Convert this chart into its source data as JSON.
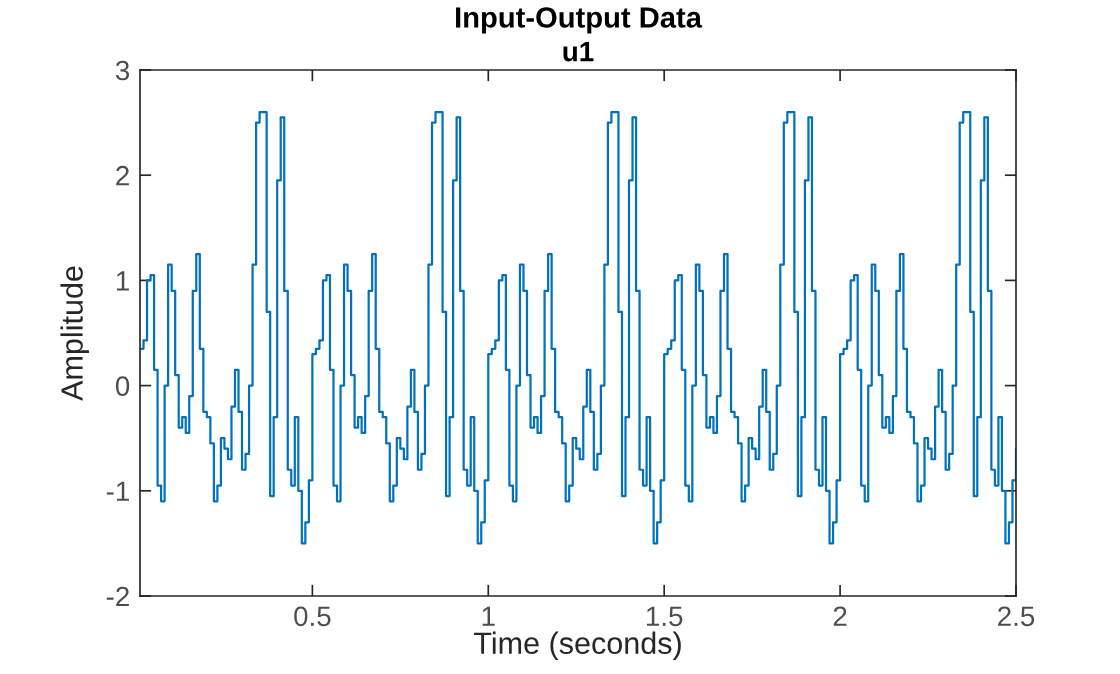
{
  "chart_data": {
    "type": "step",
    "title": "Input-Output Data",
    "subtitle": "u1",
    "xlabel": "Time (seconds)",
    "ylabel": "Amplitude",
    "xlim": [
      0.01,
      2.5
    ],
    "xticks": [
      0.5,
      1,
      1.5,
      2,
      2.5
    ],
    "ylim": [
      -2,
      3
    ],
    "yticks": [
      -2,
      -1,
      0,
      1,
      2,
      3
    ],
    "grid": false,
    "legend": false,
    "series": [
      {
        "color": "#0072bd",
        "x": [
          0.01,
          0.02,
          0.03,
          0.04,
          0.05,
          0.06,
          0.07,
          0.08,
          0.09,
          0.1,
          0.11,
          0.12,
          0.13,
          0.14,
          0.15,
          0.16,
          0.17,
          0.18,
          0.19,
          0.2,
          0.21,
          0.22,
          0.23,
          0.24,
          0.25,
          0.26,
          0.27,
          0.28,
          0.29,
          0.3,
          0.31,
          0.32,
          0.33,
          0.34,
          0.35,
          0.36,
          0.37,
          0.38,
          0.39,
          0.4,
          0.41,
          0.42,
          0.43,
          0.44,
          0.45,
          0.46,
          0.47,
          0.48,
          0.49,
          0.5,
          0.51,
          0.52,
          0.53,
          0.54,
          0.55,
          0.56,
          0.57,
          0.58,
          0.59,
          0.6,
          0.61,
          0.62,
          0.63,
          0.64,
          0.65,
          0.66,
          0.67,
          0.68,
          0.69,
          0.7,
          0.71,
          0.72,
          0.73,
          0.74,
          0.75,
          0.76,
          0.77,
          0.78,
          0.79,
          0.8,
          0.81,
          0.82,
          0.83,
          0.84,
          0.85,
          0.86,
          0.87,
          0.88,
          0.89,
          0.9,
          0.91,
          0.92,
          0.93,
          0.94,
          0.95,
          0.96,
          0.97,
          0.98,
          0.99,
          1.0,
          1.01,
          1.02,
          1.03,
          1.04,
          1.05,
          1.06,
          1.07,
          1.08,
          1.09,
          1.1,
          1.11,
          1.12,
          1.13,
          1.14,
          1.15,
          1.16,
          1.17,
          1.18,
          1.19,
          1.2,
          1.21,
          1.22,
          1.23,
          1.24,
          1.25,
          1.26,
          1.27,
          1.28,
          1.29,
          1.3,
          1.31,
          1.32,
          1.33,
          1.34,
          1.35,
          1.36,
          1.37,
          1.38,
          1.39,
          1.4,
          1.41,
          1.42,
          1.43,
          1.44,
          1.45,
          1.46,
          1.47,
          1.48,
          1.49,
          1.5,
          1.51,
          1.52,
          1.53,
          1.54,
          1.55,
          1.56,
          1.57,
          1.58,
          1.59,
          1.6,
          1.61,
          1.62,
          1.63,
          1.64,
          1.65,
          1.66,
          1.67,
          1.68,
          1.69,
          1.7,
          1.71,
          1.72,
          1.73,
          1.74,
          1.75,
          1.76,
          1.77,
          1.78,
          1.79,
          1.8,
          1.81,
          1.82,
          1.83,
          1.84,
          1.85,
          1.86,
          1.87,
          1.88,
          1.89,
          1.9,
          1.91,
          1.92,
          1.93,
          1.94,
          1.95,
          1.96,
          1.97,
          1.98,
          1.99,
          2.0,
          2.01,
          2.02,
          2.03,
          2.04,
          2.05,
          2.06,
          2.07,
          2.08,
          2.09,
          2.1,
          2.11,
          2.12,
          2.13,
          2.14,
          2.15,
          2.16,
          2.17,
          2.18,
          2.19,
          2.2,
          2.21,
          2.22,
          2.23,
          2.24,
          2.25,
          2.26,
          2.27,
          2.28,
          2.29,
          2.3,
          2.31,
          2.32,
          2.33,
          2.34,
          2.35,
          2.36,
          2.37,
          2.38,
          2.39,
          2.4,
          2.41,
          2.42,
          2.43,
          2.44,
          2.45,
          2.46,
          2.47,
          2.48,
          2.49,
          2.5
        ],
        "values": [
          0.35,
          0.43,
          1.0,
          1.05,
          0.15,
          -0.95,
          -1.1,
          0.0,
          1.15,
          0.9,
          0.1,
          -0.4,
          -0.3,
          -0.45,
          -0.1,
          0.9,
          1.25,
          0.35,
          -0.25,
          -0.3,
          -0.55,
          -1.1,
          -0.95,
          -0.5,
          -0.6,
          -0.7,
          -0.2,
          0.15,
          -0.25,
          -0.8,
          -0.65,
          0.0,
          1.15,
          2.5,
          2.6,
          2.6,
          0.7,
          -1.05,
          -0.3,
          1.95,
          2.55,
          0.9,
          -0.8,
          -0.95,
          -0.3,
          -1.0,
          -1.5,
          -1.3,
          -0.9,
          0.3,
          0.35,
          0.43,
          1.0,
          1.05,
          0.15,
          -0.95,
          -1.1,
          0.0,
          1.15,
          0.9,
          0.1,
          -0.4,
          -0.3,
          -0.45,
          -0.1,
          0.9,
          1.25,
          0.35,
          -0.25,
          -0.3,
          -0.55,
          -1.1,
          -0.95,
          -0.5,
          -0.6,
          -0.7,
          -0.2,
          0.15,
          -0.25,
          -0.8,
          -0.65,
          0.0,
          1.15,
          2.5,
          2.6,
          2.6,
          0.7,
          -1.05,
          -0.3,
          1.95,
          2.55,
          0.9,
          -0.8,
          -0.95,
          -0.3,
          -1.0,
          -1.5,
          -1.3,
          -0.9,
          0.3,
          0.35,
          0.43,
          1.0,
          1.05,
          0.15,
          -0.95,
          -1.1,
          0.0,
          1.15,
          0.9,
          0.1,
          -0.4,
          -0.3,
          -0.45,
          -0.1,
          0.9,
          1.25,
          0.35,
          -0.25,
          -0.3,
          -0.55,
          -1.1,
          -0.95,
          -0.5,
          -0.6,
          -0.7,
          -0.2,
          0.15,
          -0.25,
          -0.8,
          -0.65,
          0.0,
          1.15,
          2.5,
          2.6,
          2.6,
          0.7,
          -1.05,
          -0.3,
          1.95,
          2.55,
          0.9,
          -0.8,
          -0.95,
          -0.3,
          -1.0,
          -1.5,
          -1.3,
          -0.9,
          0.3,
          0.35,
          0.43,
          1.0,
          1.05,
          0.15,
          -0.95,
          -1.1,
          0.0,
          1.15,
          0.9,
          0.1,
          -0.4,
          -0.3,
          -0.45,
          -0.1,
          0.9,
          1.25,
          0.35,
          -0.25,
          -0.3,
          -0.55,
          -1.1,
          -0.95,
          -0.5,
          -0.6,
          -0.7,
          -0.2,
          0.15,
          -0.25,
          -0.8,
          -0.65,
          0.0,
          1.15,
          2.5,
          2.6,
          2.6,
          0.7,
          -1.05,
          -0.3,
          1.95,
          2.55,
          0.9,
          -0.8,
          -0.95,
          -0.3,
          -1.0,
          -1.5,
          -1.3,
          -0.9,
          0.3,
          0.35,
          0.43,
          1.0,
          1.05,
          0.15,
          -0.95,
          -1.1,
          0.0,
          1.15,
          0.9,
          0.1,
          -0.4,
          -0.3,
          -0.45,
          -0.1,
          0.9,
          1.25,
          0.35,
          -0.25,
          -0.3,
          -0.55,
          -1.1,
          -0.95,
          -0.5,
          -0.6,
          -0.7,
          -0.2,
          0.15,
          -0.25,
          -0.8,
          -0.65,
          0.0,
          1.15,
          2.5,
          2.6,
          2.6,
          0.7,
          -1.05,
          -0.3,
          1.95,
          2.55,
          0.9,
          -0.8,
          -0.95,
          -0.3,
          -1.0,
          -1.5,
          -1.3,
          -0.9,
          -0.6
        ]
      }
    ]
  }
}
